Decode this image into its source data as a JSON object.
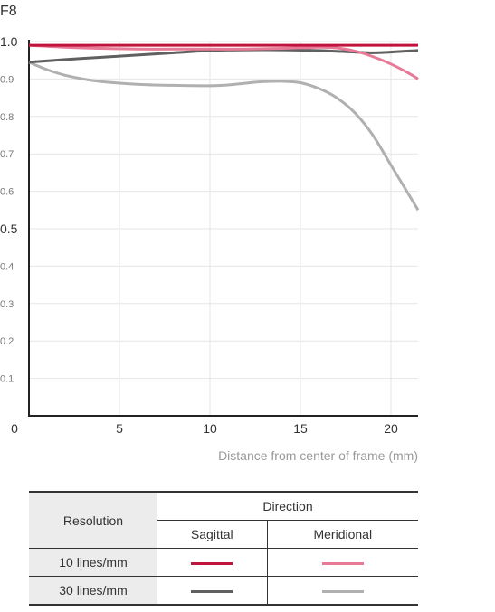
{
  "chart_data": {
    "type": "line",
    "title": "F8",
    "xlabel": "Distance from center of frame (mm)",
    "ylabel": "",
    "xlim": [
      0,
      21.5
    ],
    "ylim": [
      0,
      1.0
    ],
    "x_ticks": [
      {
        "value": 0,
        "label": "0"
      },
      {
        "value": 5,
        "label": "5"
      },
      {
        "value": 10,
        "label": "10"
      },
      {
        "value": 15,
        "label": "15"
      },
      {
        "value": 20,
        "label": "20"
      }
    ],
    "y_ticks": [
      {
        "value": 0.1,
        "label": "0.1",
        "major": false
      },
      {
        "value": 0.2,
        "label": "0.2",
        "major": false
      },
      {
        "value": 0.3,
        "label": "0.3",
        "major": false
      },
      {
        "value": 0.4,
        "label": "0.4",
        "major": false
      },
      {
        "value": 0.5,
        "label": "0.5",
        "major": true
      },
      {
        "value": 0.6,
        "label": "0.6",
        "major": false
      },
      {
        "value": 0.7,
        "label": "0.7",
        "major": false
      },
      {
        "value": 0.8,
        "label": "0.8",
        "major": false
      },
      {
        "value": 0.9,
        "label": "0.9",
        "major": false
      },
      {
        "value": 1.0,
        "label": "1.0",
        "major": true
      }
    ],
    "grid": true,
    "series": [
      {
        "key": "s10",
        "color": "#c0143c",
        "x": [
          0,
          2,
          4,
          6,
          8,
          10,
          12,
          14,
          16,
          18,
          20,
          21.5
        ],
        "y": [
          0.99,
          0.99,
          0.99,
          0.99,
          0.99,
          0.99,
          0.99,
          0.99,
          0.99,
          0.99,
          0.99,
          0.99
        ]
      },
      {
        "key": "m10",
        "color": "#e87a98",
        "x": [
          0,
          2,
          4,
          6,
          8,
          10,
          12,
          14,
          16,
          17,
          18,
          19,
          20,
          21,
          21.5
        ],
        "y": [
          0.99,
          0.985,
          0.982,
          0.98,
          0.98,
          0.98,
          0.98,
          0.982,
          0.985,
          0.983,
          0.975,
          0.96,
          0.94,
          0.915,
          0.9
        ]
      },
      {
        "key": "s30",
        "color": "#606060",
        "x": [
          0,
          2,
          4,
          6,
          8,
          10,
          12,
          14,
          16,
          17,
          18,
          19,
          20,
          21,
          21.5
        ],
        "y": [
          0.945,
          0.952,
          0.958,
          0.964,
          0.97,
          0.976,
          0.978,
          0.978,
          0.976,
          0.974,
          0.972,
          0.97,
          0.972,
          0.975,
          0.976
        ]
      },
      {
        "key": "m30",
        "color": "#b0b0b0",
        "x": [
          0,
          1,
          2,
          3,
          4,
          6,
          8,
          10,
          11,
          12,
          13,
          14,
          15,
          16,
          17,
          18,
          19,
          20,
          21,
          21.5
        ],
        "y": [
          0.945,
          0.925,
          0.91,
          0.9,
          0.893,
          0.886,
          0.883,
          0.882,
          0.884,
          0.889,
          0.893,
          0.894,
          0.89,
          0.875,
          0.85,
          0.81,
          0.75,
          0.67,
          0.59,
          0.55
        ]
      }
    ]
  },
  "legend": {
    "resolution_header": "Resolution",
    "direction_header": "Direction",
    "sagittal_header": "Sagittal",
    "meridional_header": "Meridional",
    "row1_label": "10 lines/mm",
    "row2_label": "30 lines/mm",
    "colors": {
      "sagittal_10": "#c0143c",
      "meridional_10": "#e87a98",
      "sagittal_30": "#606060",
      "meridional_30": "#b0b0b0"
    }
  }
}
